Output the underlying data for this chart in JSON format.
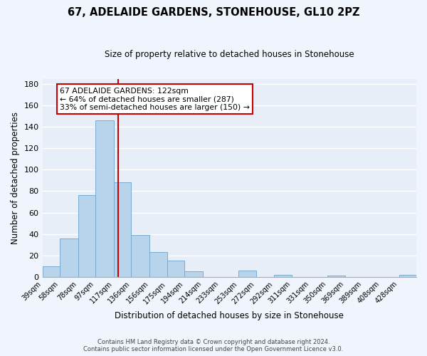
{
  "title": "67, ADELAIDE GARDENS, STONEHOUSE, GL10 2PZ",
  "subtitle": "Size of property relative to detached houses in Stonehouse",
  "xlabel": "Distribution of detached houses by size in Stonehouse",
  "ylabel": "Number of detached properties",
  "bar_color": "#b8d4eb",
  "bar_edge_color": "#7aabcf",
  "background_color": "#e8eef8",
  "grid_color": "#ffffff",
  "bin_labels": [
    "39sqm",
    "58sqm",
    "78sqm",
    "97sqm",
    "117sqm",
    "136sqm",
    "156sqm",
    "175sqm",
    "194sqm",
    "214sqm",
    "233sqm",
    "253sqm",
    "272sqm",
    "292sqm",
    "311sqm",
    "331sqm",
    "350sqm",
    "369sqm",
    "389sqm",
    "408sqm",
    "428sqm"
  ],
  "bar_heights": [
    10,
    36,
    76,
    146,
    88,
    39,
    23,
    15,
    5,
    0,
    0,
    6,
    0,
    2,
    0,
    0,
    1,
    0,
    0,
    0,
    2
  ],
  "vline_x": 122,
  "vline_color": "#cc0000",
  "annotation_text": "67 ADELAIDE GARDENS: 122sqm\n← 64% of detached houses are smaller (287)\n33% of semi-detached houses are larger (150) →",
  "annotation_box_color": "#ffffff",
  "annotation_box_edge_color": "#cc0000",
  "ylim": [
    0,
    185
  ],
  "yticks": [
    0,
    20,
    40,
    60,
    80,
    100,
    120,
    140,
    160,
    180
  ],
  "bin_edges": [
    39,
    58,
    78,
    97,
    117,
    136,
    156,
    175,
    194,
    214,
    233,
    253,
    272,
    292,
    311,
    331,
    350,
    369,
    389,
    408,
    428,
    447
  ],
  "footer_line1": "Contains HM Land Registry data © Crown copyright and database right 2024.",
  "footer_line2": "Contains public sector information licensed under the Open Government Licence v3.0."
}
